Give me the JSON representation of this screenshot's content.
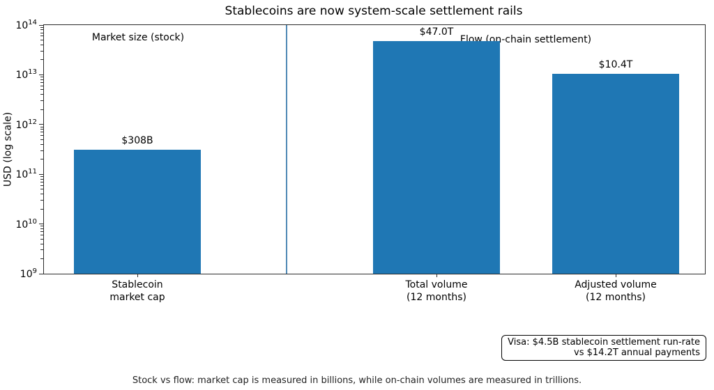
{
  "chart_data": {
    "type": "bar",
    "title": "Stablecoins are now system-scale settlement rails",
    "ylabel": "USD (log scale)",
    "yscale": "log",
    "ylim": [
      1000000000,
      100000000000000
    ],
    "ytick_exponents": [
      9,
      10,
      11,
      12,
      13,
      14
    ],
    "grid": false,
    "categories": [
      "Stablecoin\nmarket cap",
      "Total volume\n(12 months)",
      "Adjusted volume\n(12 months)"
    ],
    "values": [
      308000000000,
      47000000000000,
      10400000000000
    ],
    "value_labels": [
      "$308B",
      "$47.0T",
      "$10.4T"
    ],
    "bar_color": "#1f77b4",
    "group_annotations": [
      {
        "label": "Market size (stock)",
        "group": "stock"
      },
      {
        "label": "Flow (on-chain settlement)",
        "group": "flow"
      }
    ],
    "divider_note": "vertical line separating stock group from flow group"
  },
  "note_box": {
    "line1": "Visa: $4.5B stablecoin settlement run-rate",
    "line2": "vs $14.2T annual payments"
  },
  "caption": "Stock vs flow: market cap is measured in billions, while on-chain volumes are measured in trillions."
}
